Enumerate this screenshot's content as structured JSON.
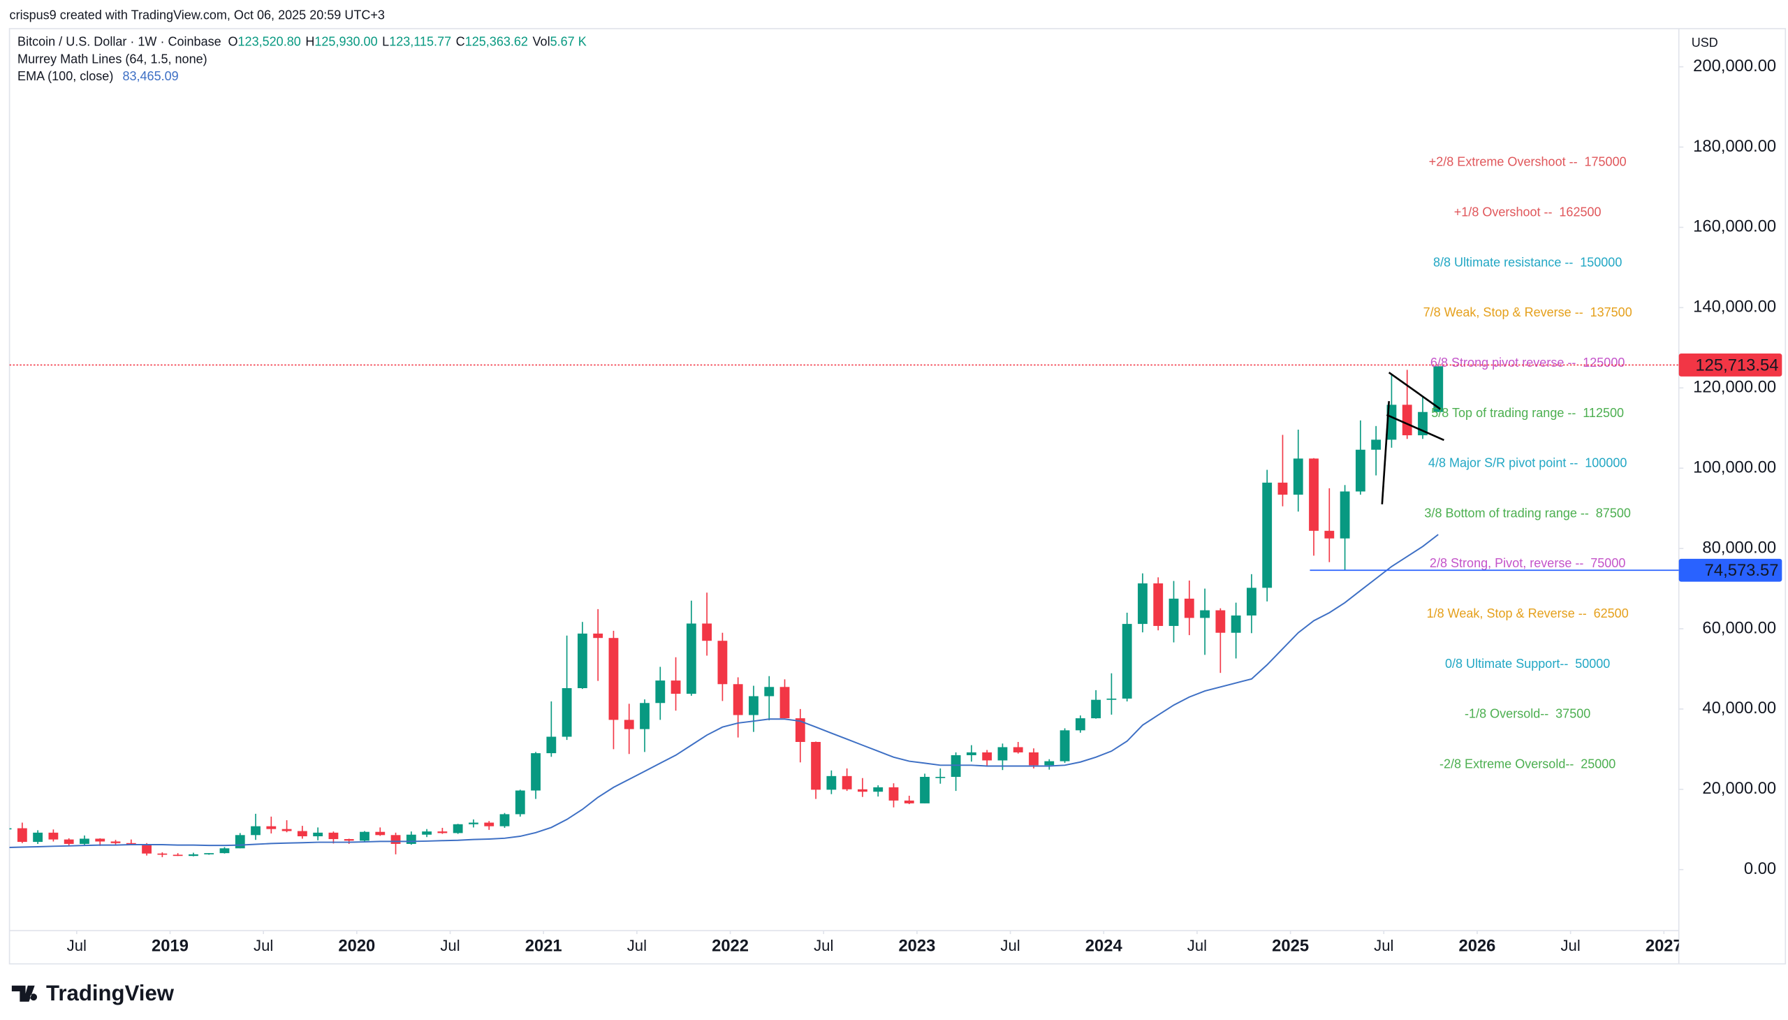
{
  "header": {
    "credit": "crispus9 created with TradingView.com, Oct 06, 2025 20:59 UTC+3",
    "symbol": "Bitcoin / U.S. Dollar · 1W · Coinbase",
    "ohlcv": [
      {
        "key": "O",
        "value": "123,520.80"
      },
      {
        "key": "H",
        "value": "125,930.00"
      },
      {
        "key": "L",
        "value": "123,115.77"
      },
      {
        "key": "C",
        "value": "125,363.62"
      },
      {
        "key": "Vol",
        "value": "5.67 K"
      }
    ],
    "indicators": [
      {
        "name": "Murrey Math Lines (64, 1.5, none)"
      },
      {
        "name": "EMA (100, close)",
        "value": "83,465.09"
      }
    ],
    "brand": "TradingView"
  },
  "chart_data": {
    "type": "candlestick",
    "currency": "USD",
    "up_color": "#089981",
    "down_color": "#f23645",
    "ema_color": "#3d6fc4",
    "x": [
      "2018-02",
      "2018-03",
      "2018-04",
      "2018-05",
      "2018-06",
      "2018-07",
      "2018-08",
      "2018-09",
      "2018-10",
      "2018-11",
      "2018-12",
      "2019-01",
      "2019-02",
      "2019-03",
      "2019-04",
      "2019-05",
      "2019-06",
      "2019-07",
      "2019-08",
      "2019-09",
      "2019-10",
      "2019-11",
      "2019-12",
      "2020-01",
      "2020-02",
      "2020-03",
      "2020-04",
      "2020-05",
      "2020-06",
      "2020-07",
      "2020-08",
      "2020-09",
      "2020-10",
      "2020-11",
      "2020-12",
      "2021-01",
      "2021-02",
      "2021-03",
      "2021-04",
      "2021-05",
      "2021-06",
      "2021-07",
      "2021-08",
      "2021-09",
      "2021-10",
      "2021-11",
      "2021-12",
      "2022-01",
      "2022-02",
      "2022-03",
      "2022-04",
      "2022-05",
      "2022-06",
      "2022-07",
      "2022-08",
      "2022-09",
      "2022-10",
      "2022-11",
      "2022-12",
      "2023-01",
      "2023-02",
      "2023-03",
      "2023-04",
      "2023-05",
      "2023-06",
      "2023-07",
      "2023-08",
      "2023-09",
      "2023-10",
      "2023-11",
      "2023-12",
      "2024-01",
      "2024-02",
      "2024-03",
      "2024-04",
      "2024-05",
      "2024-06",
      "2024-07",
      "2024-08",
      "2024-09",
      "2024-10",
      "2024-11",
      "2024-12",
      "2025-01",
      "2025-02",
      "2025-03",
      "2025-04",
      "2025-05",
      "2025-06",
      "2025-07",
      "2025-08",
      "2025-09",
      "2025-10"
    ],
    "open": [
      10200,
      10300,
      6900,
      9200,
      7500,
      6400,
      7700,
      7000,
      6600,
      6300,
      4000,
      3700,
      3400,
      3800,
      4100,
      5300,
      8600,
      10800,
      10100,
      9600,
      8300,
      9200,
      7600,
      7200,
      9400,
      8600,
      6400,
      8700,
      9500,
      9100,
      11300,
      11700,
      10800,
      13800,
      19700,
      29000,
      33100,
      45200,
      58800,
      57700,
      37300,
      35000,
      41500,
      47100,
      43800,
      61300,
      57000,
      46200,
      38500,
      43200,
      45500,
      37700,
      31800,
      19900,
      23300,
      20000,
      19400,
      20500,
      17200,
      16500,
      23100,
      23100,
      28500,
      29200,
      27200,
      30500,
      29200,
      26000,
      27000,
      34700,
      37700,
      42300,
      42600,
      61200,
      71300,
      60700,
      67500,
      62700,
      64600,
      59000,
      63300,
      70200,
      96400,
      93400,
      102400,
      84400,
      82500,
      94200,
      104600,
      107100,
      115800,
      108200,
      114000
    ],
    "high": [
      11800,
      11700,
      9800,
      10000,
      7800,
      8500,
      7800,
      7400,
      7500,
      6600,
      4300,
      4100,
      4200,
      4100,
      5600,
      9100,
      13900,
      13200,
      12300,
      10900,
      10500,
      9500,
      7700,
      9600,
      10500,
      9200,
      9500,
      10100,
      10400,
      11400,
      12500,
      12100,
      14100,
      19900,
      29300,
      41900,
      58300,
      61700,
      64900,
      59500,
      41300,
      42400,
      50500,
      52900,
      67000,
      69000,
      59000,
      47900,
      45800,
      48200,
      47400,
      40000,
      31900,
      24700,
      25200,
      22800,
      21000,
      21500,
      18400,
      23900,
      25200,
      29200,
      31000,
      29800,
      31400,
      31800,
      30200,
      27500,
      35200,
      38400,
      44700,
      48900,
      64000,
      73800,
      72800,
      71900,
      72000,
      70000,
      65100,
      66500,
      73600,
      99600,
      108300,
      109600,
      102500,
      95000,
      95800,
      111900,
      110500,
      123200,
      124500,
      117900,
      125900
    ],
    "low": [
      6000,
      6600,
      6400,
      7000,
      5800,
      6100,
      5900,
      6100,
      6200,
      3500,
      3100,
      3400,
      3300,
      3700,
      4000,
      5300,
      7400,
      9000,
      9300,
      7700,
      7300,
      6500,
      6400,
      6900,
      8400,
      3800,
      6200,
      8100,
      8900,
      8900,
      10500,
      9900,
      10400,
      13200,
      17600,
      28100,
      32300,
      45000,
      47000,
      30000,
      28800,
      29300,
      37300,
      39600,
      43300,
      53300,
      42000,
      32900,
      34300,
      37200,
      37700,
      26700,
      17600,
      18800,
      19600,
      18100,
      18200,
      15500,
      16300,
      16500,
      21400,
      19600,
      26900,
      25900,
      24800,
      28900,
      25200,
      24900,
      26600,
      34100,
      37600,
      38600,
      41900,
      59100,
      59600,
      56600,
      58400,
      53500,
      49000,
      52600,
      58900,
      66800,
      90500,
      89200,
      78200,
      76600,
      74600,
      93400,
      98200,
      105100,
      107300,
      107300,
      114000
    ],
    "close": [
      10300,
      6900,
      9200,
      7500,
      6400,
      7700,
      7000,
      6600,
      6300,
      4000,
      3700,
      3400,
      3800,
      4100,
      5300,
      8600,
      10800,
      10100,
      9600,
      8300,
      9200,
      7600,
      7200,
      9400,
      8600,
      6400,
      8700,
      9500,
      9100,
      11300,
      11700,
      10800,
      13800,
      19700,
      29000,
      33100,
      45200,
      58800,
      57700,
      37300,
      35000,
      41500,
      47100,
      43800,
      61300,
      57000,
      46200,
      38500,
      43200,
      45500,
      37700,
      31800,
      19900,
      23300,
      20000,
      19400,
      20500,
      17200,
      16500,
      23100,
      23100,
      28500,
      29200,
      27200,
      30500,
      29200,
      26000,
      27000,
      34700,
      37700,
      42300,
      42600,
      61200,
      71300,
      60700,
      67500,
      62700,
      64600,
      59000,
      63300,
      70200,
      96400,
      93400,
      102400,
      84400,
      82500,
      94200,
      104600,
      107100,
      115800,
      108200,
      114000,
      125400
    ],
    "ema": [
      5500,
      5600,
      5700,
      5800,
      5900,
      6000,
      6100,
      6100,
      6200,
      6200,
      6200,
      6100,
      6100,
      6000,
      6000,
      6100,
      6300,
      6500,
      6600,
      6700,
      6800,
      6800,
      6800,
      6900,
      7000,
      7000,
      7000,
      7100,
      7200,
      7300,
      7500,
      7600,
      7800,
      8300,
      9200,
      10500,
      12500,
      15000,
      18000,
      20500,
      22500,
      24500,
      26500,
      28500,
      31000,
      33500,
      35500,
      36500,
      37000,
      37500,
      37500,
      37000,
      35500,
      34000,
      32500,
      31000,
      29500,
      28000,
      27000,
      26500,
      26000,
      26000,
      26000,
      25800,
      25800,
      25800,
      25800,
      25800,
      26000,
      26800,
      28000,
      29500,
      32000,
      36000,
      38500,
      41000,
      43000,
      44500,
      45500,
      46500,
      47500,
      51000,
      55000,
      59000,
      62000,
      64000,
      66500,
      69500,
      72500,
      75500,
      78000,
      80500,
      83465.09
    ],
    "xlim": [
      2018.14,
      2027.08
    ],
    "xticks": [
      {
        "value": 2018.5,
        "label": "Jul"
      },
      2019,
      {
        "value": 2019.5,
        "label": "Jul"
      },
      2020,
      {
        "value": 2020.5,
        "label": "Jul"
      },
      2021,
      {
        "value": 2021.5,
        "label": "Jul"
      },
      2022,
      {
        "value": 2022.5,
        "label": "Jul"
      },
      2023,
      {
        "value": 2023.5,
        "label": "Jul"
      },
      2024,
      {
        "value": 2024.5,
        "label": "Jul"
      },
      2025,
      {
        "value": 2025.5,
        "label": "Jul"
      },
      2026,
      {
        "value": 2026.5,
        "label": "Jul"
      },
      2027
    ],
    "ylim": [
      -15200,
      209500
    ],
    "yticks": [
      {
        "value": 0,
        "label": "0.00"
      },
      {
        "value": 20000,
        "label": "20,000.00"
      },
      {
        "value": 40000,
        "label": "40,000.00"
      },
      {
        "value": 60000,
        "label": "60,000.00"
      },
      {
        "value": 80000,
        "label": "80,000.00"
      },
      {
        "value": 100000,
        "label": "100,000.00"
      },
      {
        "value": 120000,
        "label": "120,000.00"
      },
      {
        "value": 140000,
        "label": "140,000.00"
      },
      {
        "value": 160000,
        "label": "160,000.00"
      },
      {
        "value": 180000,
        "label": "180,000.00"
      },
      {
        "value": 200000,
        "label": "200,000.00"
      }
    ],
    "murrey": [
      {
        "label": "+2/8 Extreme Overshoot --",
        "value": 175000,
        "color": "#e0575b"
      },
      {
        "label": "+1/8 Overshoot --",
        "value": 162500,
        "color": "#e0575b"
      },
      {
        "label": "8/8 Ultimate resistance --",
        "value": 150000,
        "color": "#22a7c4"
      },
      {
        "label": "7/8 Weak, Stop & Reverse --",
        "value": 137500,
        "color": "#e5a01c"
      },
      {
        "label": "6/8 Strong pivot reverse --",
        "value": 125000,
        "color": "#c454c9"
      },
      {
        "label": "5/8 Top of trading range --",
        "value": 112500,
        "color": "#4caf50"
      },
      {
        "label": "4/8 Major S/R pivot point --",
        "value": 100000,
        "color": "#22a7c4"
      },
      {
        "label": "3/8 Bottom of trading range --",
        "value": 87500,
        "color": "#4caf50"
      },
      {
        "label": "2/8 Strong, Pivot, reverse --",
        "value": 75000,
        "color": "#c454c9"
      },
      {
        "label": "1/8 Weak, Stop & Reverse --",
        "value": 62500,
        "color": "#e5a01c"
      },
      {
        "label": "0/8 Ultimate Support--",
        "value": 50000,
        "color": "#22a7c4"
      },
      {
        "label": "-1/8 Oversold--",
        "value": 37500,
        "color": "#4caf50"
      },
      {
        "label": "-2/8 Extreme Oversold--",
        "value": 25000,
        "color": "#4caf50"
      }
    ],
    "price_lines": [
      {
        "value": 125713.54,
        "label": "125,713.54",
        "color": "#f23645",
        "style": "dotted"
      },
      {
        "value": 74573.57,
        "label": "74,573.57",
        "color": "#2962ff",
        "style": "solid"
      }
    ]
  }
}
